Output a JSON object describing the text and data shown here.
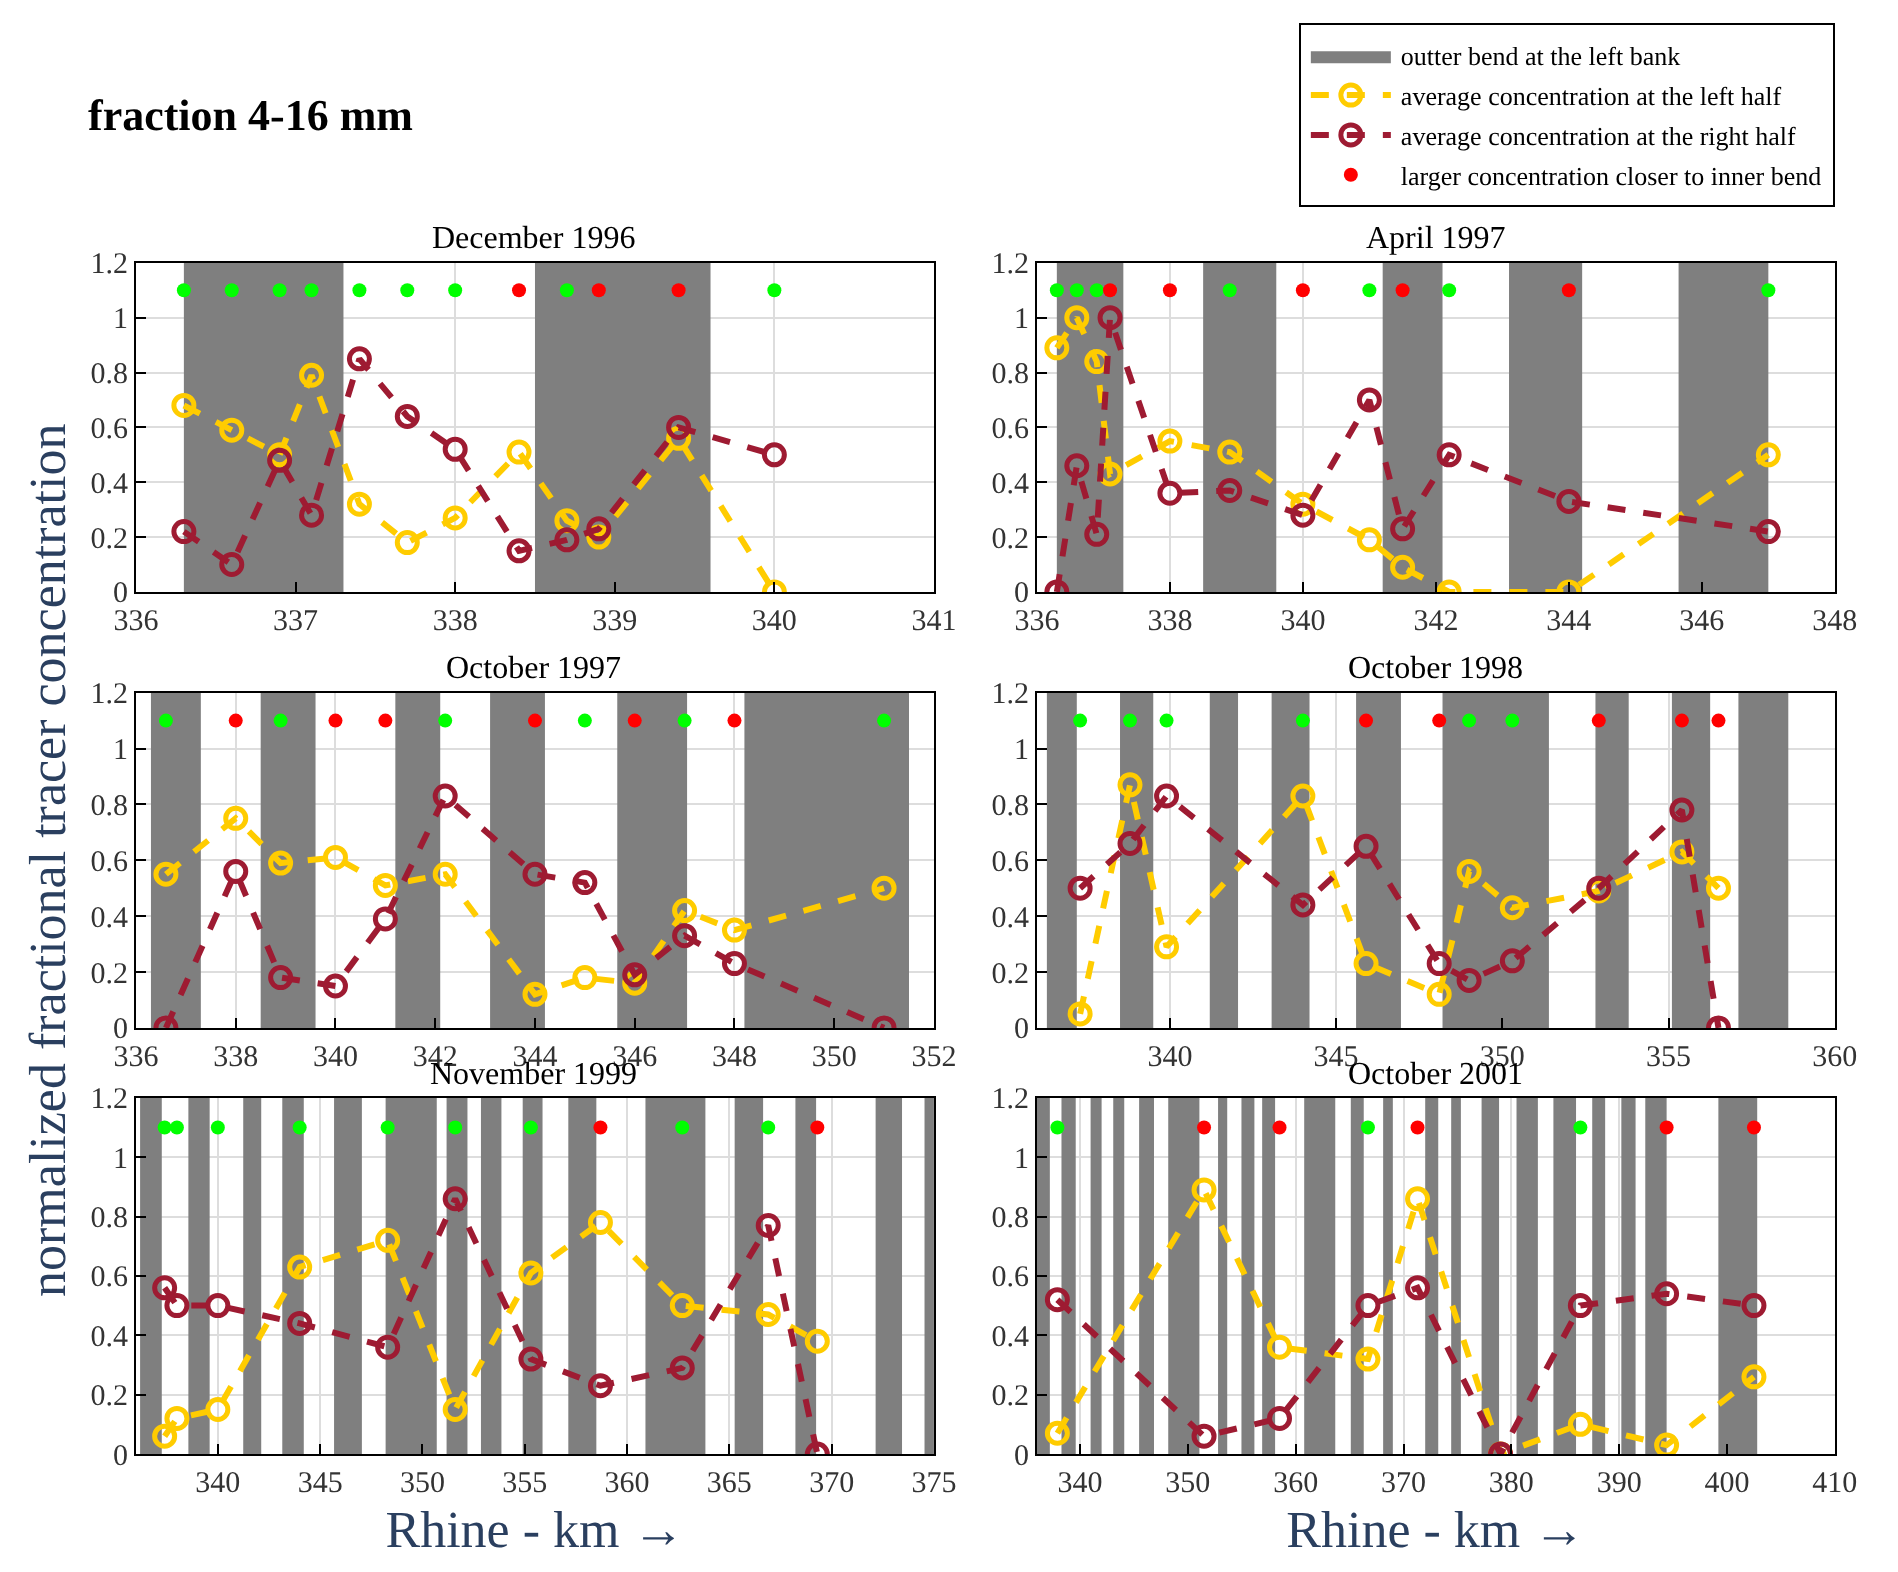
{
  "chart_data": [
    {
      "type": "line",
      "title": "December 1996",
      "annotations": [
        "fraction 4-16 mm"
      ],
      "legend": "top right",
      "grid": true,
      "xlim": [
        336,
        341
      ],
      "xticks": [
        336,
        337,
        338,
        339,
        340,
        341
      ],
      "ylim": [
        0,
        1.2
      ],
      "yticks": [
        0,
        0.2,
        0.4,
        0.6,
        0.8,
        1,
        1.2
      ],
      "bands": [
        {
          "axis": "x",
          "from": 336.3,
          "to": 337.3,
          "label": "outter bend at the left bank",
          "color": "#7f7f7f"
        },
        {
          "axis": "x",
          "from": 338.5,
          "to": 339.6,
          "color": "#7f7f7f"
        }
      ],
      "series": [
        {
          "name": "average concentration at the left half",
          "type": "line",
          "color": "#ffcc00",
          "marker": "circle",
          "line_style": "dashed",
          "x": [
            336.3,
            336.6,
            336.9,
            337.1,
            337.4,
            337.7,
            338.0,
            338.4,
            338.7,
            338.9,
            339.4,
            340.0
          ],
          "values": [
            0.68,
            0.59,
            0.5,
            0.79,
            0.32,
            0.18,
            0.27,
            0.51,
            0.26,
            0.2,
            0.56,
            0
          ]
        },
        {
          "name": "average concentration at the right half",
          "type": "line",
          "color": "#9e1b32",
          "marker": "circle",
          "line_style": "dashed",
          "x": [
            336.3,
            336.6,
            336.9,
            337.1,
            337.4,
            337.7,
            338.0,
            338.4,
            338.7,
            338.9,
            339.4,
            340.0
          ],
          "values": [
            0.22,
            0.1,
            0.48,
            0.28,
            0.85,
            0.64,
            0.52,
            0.15,
            0.19,
            0.23,
            0.6,
            0.5
          ]
        },
        {
          "type": "scatter",
          "color": "#00ff00",
          "marker": "circle",
          "x": [
            336.3,
            336.6,
            336.9,
            337.1,
            337.4,
            337.7,
            338.0,
            338.7,
            340.0
          ],
          "values": [
            1.1,
            1.1,
            1.1,
            1.1,
            1.1,
            1.1,
            1.1,
            1.1,
            1.1
          ]
        },
        {
          "name": "larger concentration closer to inner bend",
          "type": "scatter",
          "color": "#ff0000",
          "marker": "circle",
          "x": [
            338.4,
            338.9,
            339.4
          ],
          "values": [
            1.1,
            1.1,
            1.1
          ]
        }
      ]
    },
    {
      "type": "line",
      "title": "April 1997",
      "grid": true,
      "xlim": [
        336,
        348
      ],
      "xticks": [
        336,
        338,
        340,
        342,
        344,
        346,
        348
      ],
      "ylim": [
        0,
        1.2
      ],
      "yticks": [
        0,
        0.2,
        0.4,
        0.6,
        0.8,
        1,
        1.2
      ],
      "bands": [
        {
          "axis": "x",
          "from": 336.3,
          "to": 337.3,
          "color": "#7f7f7f"
        },
        {
          "axis": "x",
          "from": 338.5,
          "to": 339.6,
          "color": "#7f7f7f"
        },
        {
          "axis": "x",
          "from": 341.2,
          "to": 342.1,
          "color": "#7f7f7f"
        },
        {
          "axis": "x",
          "from": 343.1,
          "to": 344.2,
          "color": "#7f7f7f"
        },
        {
          "axis": "x",
          "from": 345.65,
          "to": 347.0,
          "color": "#7f7f7f"
        }
      ],
      "series": [
        {
          "type": "line",
          "color": "#ffcc00",
          "marker": "circle",
          "line_style": "dashed",
          "x": [
            336.3,
            336.6,
            336.9,
            337.1,
            338.0,
            338.9,
            340.0,
            341.0,
            341.5,
            342.2,
            344.0,
            347.0
          ],
          "values": [
            0.89,
            1.0,
            0.84,
            0.43,
            0.55,
            0.51,
            0.32,
            0.19,
            0.09,
            0,
            0,
            0.5
          ]
        },
        {
          "type": "line",
          "color": "#9e1b32",
          "marker": "circle",
          "line_style": "dashed",
          "x": [
            336.3,
            336.6,
            336.9,
            337.1,
            338.0,
            338.9,
            340.0,
            341.0,
            341.5,
            342.2,
            344.0,
            347.0
          ],
          "values": [
            0,
            0.46,
            0.21,
            1.0,
            0.36,
            0.37,
            0.28,
            0.7,
            0.23,
            0.5,
            0.33,
            0.22
          ]
        },
        {
          "type": "scatter",
          "color": "#00ff00",
          "marker": "circle",
          "x": [
            336.3,
            336.6,
            336.9,
            338.9,
            341.0,
            342.2,
            347.0
          ],
          "values": [
            1.1,
            1.1,
            1.1,
            1.1,
            1.1,
            1.1,
            1.1
          ]
        },
        {
          "type": "scatter",
          "color": "#ff0000",
          "marker": "circle",
          "x": [
            337.1,
            338.0,
            340.0,
            341.5,
            344.0
          ],
          "values": [
            1.1,
            1.1,
            1.1,
            1.1,
            1.1
          ]
        }
      ]
    },
    {
      "type": "line",
      "title": "October 1997",
      "ylabel": "normalized fractional tracer concentration",
      "grid": true,
      "xlim": [
        336,
        352
      ],
      "xticks": [
        336,
        338,
        340,
        342,
        344,
        346,
        348,
        350,
        352
      ],
      "ylim": [
        0,
        1.2
      ],
      "yticks": [
        0,
        0.2,
        0.4,
        0.6,
        0.8,
        1,
        1.2
      ],
      "bands": [
        {
          "axis": "x",
          "from": 336.3,
          "to": 337.3,
          "color": "#7f7f7f"
        },
        {
          "axis": "x",
          "from": 338.5,
          "to": 339.6,
          "color": "#7f7f7f"
        },
        {
          "axis": "x",
          "from": 341.2,
          "to": 342.1,
          "color": "#7f7f7f"
        },
        {
          "axis": "x",
          "from": 343.1,
          "to": 344.2,
          "color": "#7f7f7f"
        },
        {
          "axis": "x",
          "from": 345.65,
          "to": 347.05,
          "color": "#7f7f7f"
        },
        {
          "axis": "x",
          "from": 348.2,
          "to": 351.5,
          "color": "#7f7f7f"
        }
      ],
      "series": [
        {
          "type": "line",
          "color": "#ffcc00",
          "marker": "circle",
          "line_style": "dashed",
          "x": [
            336.6,
            338.0,
            338.9,
            340.0,
            341.0,
            342.2,
            344.0,
            345.0,
            346.0,
            347.0,
            348.0,
            351.0
          ],
          "values": [
            0.55,
            0.75,
            0.59,
            0.61,
            0.51,
            0.55,
            0.12,
            0.18,
            0.16,
            0.42,
            0.35,
            0.5
          ]
        },
        {
          "type": "line",
          "color": "#9e1b32",
          "marker": "circle",
          "line_style": "dashed",
          "x": [
            336.6,
            338.0,
            338.9,
            340.0,
            341.0,
            342.2,
            344.0,
            345.0,
            346.0,
            347.0,
            348.0,
            351.0
          ],
          "values": [
            0,
            0.56,
            0.18,
            0.15,
            0.39,
            0.83,
            0.55,
            0.52,
            0.19,
            0.33,
            0.23,
            0
          ]
        },
        {
          "type": "scatter",
          "color": "#00ff00",
          "marker": "circle",
          "x": [
            336.6,
            338.9,
            342.2,
            345.0,
            347.0,
            351.0
          ],
          "values": [
            1.1,
            1.1,
            1.1,
            1.1,
            1.1,
            1.1
          ]
        },
        {
          "type": "scatter",
          "color": "#ff0000",
          "marker": "circle",
          "x": [
            338.0,
            340.0,
            341.0,
            344.0,
            346.0,
            348.0
          ],
          "values": [
            1.1,
            1.1,
            1.1,
            1.1,
            1.1,
            1.1
          ]
        }
      ]
    },
    {
      "type": "line",
      "title": "October 1998",
      "grid": true,
      "xlim": [
        336,
        360
      ],
      "xticks": [
        340,
        345,
        350,
        355,
        360
      ],
      "ylim": [
        0,
        1.2
      ],
      "yticks": [
        0,
        0.2,
        0.4,
        0.6,
        0.8,
        1,
        1.2
      ],
      "bands": [
        {
          "axis": "x",
          "from": 336.3,
          "to": 337.2,
          "color": "#7f7f7f"
        },
        {
          "axis": "x",
          "from": 338.5,
          "to": 339.5,
          "color": "#7f7f7f"
        },
        {
          "axis": "x",
          "from": 341.2,
          "to": 342.05,
          "color": "#7f7f7f"
        },
        {
          "axis": "x",
          "from": 343.06,
          "to": 344.2,
          "color": "#7f7f7f"
        },
        {
          "axis": "x",
          "from": 345.6,
          "to": 346.95,
          "color": "#7f7f7f"
        },
        {
          "axis": "x",
          "from": 348.2,
          "to": 351.4,
          "color": "#7f7f7f"
        },
        {
          "axis": "x",
          "from": 352.8,
          "to": 353.8,
          "color": "#7f7f7f"
        },
        {
          "axis": "x",
          "from": 355.1,
          "to": 356.25,
          "color": "#7f7f7f"
        },
        {
          "axis": "x",
          "from": 357.1,
          "to": 358.6,
          "color": "#7f7f7f"
        }
      ],
      "series": [
        {
          "type": "line",
          "color": "#ffcc00",
          "marker": "circle",
          "line_style": "dashed",
          "x": [
            337.3,
            338.8,
            339.9,
            344.0,
            345.9,
            348.1,
            349.0,
            350.3,
            352.9,
            355.4,
            356.5
          ],
          "values": [
            0.05,
            0.87,
            0.29,
            0.83,
            0.23,
            0.12,
            0.56,
            0.43,
            0.49,
            0.63,
            0.5
          ]
        },
        {
          "type": "line",
          "color": "#9e1b32",
          "marker": "circle",
          "line_style": "dashed",
          "x": [
            337.3,
            338.8,
            339.9,
            344.0,
            345.9,
            348.1,
            349.0,
            350.3,
            352.9,
            355.4,
            356.5
          ],
          "values": [
            0.5,
            0.66,
            0.83,
            0.44,
            0.65,
            0.23,
            0.17,
            0.24,
            0.5,
            0.78,
            0
          ]
        },
        {
          "type": "scatter",
          "color": "#00ff00",
          "marker": "circle",
          "x": [
            337.3,
            338.8,
            339.9,
            344.0,
            349.0,
            350.3
          ],
          "values": [
            1.1,
            1.1,
            1.1,
            1.1,
            1.1,
            1.1
          ]
        },
        {
          "type": "scatter",
          "color": "#ff0000",
          "marker": "circle",
          "x": [
            345.9,
            348.1,
            352.9,
            355.4,
            356.5
          ],
          "values": [
            1.1,
            1.1,
            1.1,
            1.1,
            1.1
          ]
        }
      ]
    },
    {
      "type": "line",
      "title": "November 1999",
      "xlabel": "Rhine - km →",
      "grid": true,
      "xlim": [
        336,
        375
      ],
      "xticks": [
        340,
        345,
        350,
        355,
        360,
        365,
        370,
        375
      ],
      "ylim": [
        0,
        1.2
      ],
      "yticks": [
        0,
        0.2,
        0.4,
        0.6,
        0.8,
        1,
        1.2
      ],
      "bands": [
        {
          "axis": "x",
          "from": 336.2,
          "to": 337.26,
          "color": "#7f7f7f"
        },
        {
          "axis": "x",
          "from": 338.56,
          "to": 339.6,
          "color": "#7f7f7f"
        },
        {
          "axis": "x",
          "from": 341.24,
          "to": 342.12,
          "color": "#7f7f7f"
        },
        {
          "axis": "x",
          "from": 343.15,
          "to": 344.2,
          "color": "#7f7f7f"
        },
        {
          "axis": "x",
          "from": 345.68,
          "to": 347.04,
          "color": "#7f7f7f"
        },
        {
          "axis": "x",
          "from": 348.2,
          "to": 350.7,
          "color": "#7f7f7f"
        },
        {
          "axis": "x",
          "from": 351.18,
          "to": 352.2,
          "color": "#7f7f7f"
        },
        {
          "axis": "x",
          "from": 352.86,
          "to": 353.86,
          "color": "#7f7f7f"
        },
        {
          "axis": "x",
          "from": 354.9,
          "to": 355.87,
          "color": "#7f7f7f"
        },
        {
          "axis": "x",
          "from": 357.13,
          "to": 358.5,
          "color": "#7f7f7f"
        },
        {
          "axis": "x",
          "from": 360.9,
          "to": 363.83,
          "color": "#7f7f7f"
        },
        {
          "axis": "x",
          "from": 365.26,
          "to": 366.65,
          "color": "#7f7f7f"
        },
        {
          "axis": "x",
          "from": 368.23,
          "to": 369.24,
          "color": "#7f7f7f"
        },
        {
          "axis": "x",
          "from": 372.15,
          "to": 373.44,
          "color": "#7f7f7f"
        },
        {
          "axis": "x",
          "from": 374.54,
          "to": 375,
          "color": "#7f7f7f"
        }
      ],
      "series": [
        {
          "type": "line",
          "color": "#ffcc00",
          "marker": "circle",
          "line_style": "dashed",
          "x": [
            337.4,
            338.0,
            340.0,
            344.0,
            348.3,
            351.6,
            355.3,
            358.7,
            362.7,
            366.9,
            369.3
          ],
          "values": [
            0.06,
            0.12,
            0.15,
            0.63,
            0.72,
            0.15,
            0.61,
            0.78,
            0.5,
            0.47,
            0.38
          ]
        },
        {
          "type": "line",
          "color": "#9e1b32",
          "marker": "circle",
          "line_style": "dashed",
          "x": [
            337.4,
            338.0,
            340.0,
            344.0,
            348.3,
            351.6,
            355.3,
            358.7,
            362.7,
            366.9,
            369.3
          ],
          "values": [
            0.56,
            0.5,
            0.5,
            0.44,
            0.36,
            0.86,
            0.32,
            0.23,
            0.29,
            0.77,
            0
          ]
        },
        {
          "type": "scatter",
          "color": "#00ff00",
          "marker": "circle",
          "x": [
            337.4,
            338.0,
            340.0,
            344.0,
            348.3,
            351.6,
            355.3,
            362.7,
            366.9
          ],
          "values": [
            1.1,
            1.1,
            1.1,
            1.1,
            1.1,
            1.1,
            1.1,
            1.1,
            1.1
          ]
        },
        {
          "type": "scatter",
          "color": "#ff0000",
          "marker": "circle",
          "x": [
            358.7,
            369.3
          ],
          "values": [
            1.1,
            1.1
          ]
        }
      ]
    },
    {
      "type": "line",
      "title": "October 2001",
      "xlabel": "Rhine - km →",
      "grid": true,
      "xlim": [
        336,
        410
      ],
      "xticks": [
        340,
        350,
        360,
        370,
        380,
        390,
        400,
        410
      ],
      "ylim": [
        0,
        1.2
      ],
      "yticks": [
        0,
        0.2,
        0.4,
        0.6,
        0.8,
        1,
        1.2
      ],
      "bands": [
        {
          "axis": "x",
          "from": 336.0,
          "to": 337.2,
          "color": "#7f7f7f"
        },
        {
          "axis": "x",
          "from": 338.28,
          "to": 339.6,
          "color": "#7f7f7f"
        },
        {
          "axis": "x",
          "from": 340.98,
          "to": 342.0,
          "color": "#7f7f7f"
        },
        {
          "axis": "x",
          "from": 343.08,
          "to": 344.1,
          "color": "#7f7f7f"
        },
        {
          "axis": "x",
          "from": 345.48,
          "to": 346.86,
          "color": "#7f7f7f"
        },
        {
          "axis": "x",
          "from": 348.18,
          "to": 351.07,
          "color": "#7f7f7f"
        },
        {
          "axis": "x",
          "from": 352.8,
          "to": 353.65,
          "color": "#7f7f7f"
        },
        {
          "axis": "x",
          "from": 354.97,
          "to": 356.17,
          "color": "#7f7f7f"
        },
        {
          "axis": "x",
          "from": 356.89,
          "to": 358.09,
          "color": "#7f7f7f"
        },
        {
          "axis": "x",
          "from": 360.79,
          "to": 363.67,
          "color": "#7f7f7f"
        },
        {
          "axis": "x",
          "from": 365.11,
          "to": 366.31,
          "color": "#7f7f7f"
        },
        {
          "axis": "x",
          "from": 368.11,
          "to": 369.01,
          "color": "#7f7f7f"
        },
        {
          "axis": "x",
          "from": 372.01,
          "to": 373.22,
          "color": "#7f7f7f"
        },
        {
          "axis": "x",
          "from": 374.42,
          "to": 375.32,
          "color": "#7f7f7f"
        },
        {
          "axis": "x",
          "from": 377.24,
          "to": 378.86,
          "color": "#7f7f7f"
        },
        {
          "axis": "x",
          "from": 380.48,
          "to": 382.46,
          "color": "#7f7f7f"
        },
        {
          "axis": "x",
          "from": 383.9,
          "to": 386.0,
          "color": "#7f7f7f"
        },
        {
          "axis": "x",
          "from": 387.5,
          "to": 388.7,
          "color": "#7f7f7f"
        },
        {
          "axis": "x",
          "from": 390.2,
          "to": 391.52,
          "color": "#7f7f7f"
        },
        {
          "axis": "x",
          "from": 392.42,
          "to": 394.4,
          "color": "#7f7f7f"
        },
        {
          "axis": "x",
          "from": 399.2,
          "to": 402.8,
          "color": "#7f7f7f"
        }
      ],
      "series": [
        {
          "type": "line",
          "color": "#ffcc00",
          "marker": "circle",
          "line_style": "dashed",
          "x": [
            337.9,
            351.5,
            358.5,
            366.7,
            371.3,
            379.0,
            386.4,
            394.4,
            402.5
          ],
          "values": [
            0.07,
            0.89,
            0.36,
            0.32,
            0.86,
            0,
            0.1,
            0.03,
            0.26
          ]
        },
        {
          "type": "line",
          "color": "#9e1b32",
          "marker": "circle",
          "line_style": "dashed",
          "x": [
            337.9,
            351.5,
            358.5,
            366.7,
            371.3,
            379.0,
            386.4,
            394.4,
            402.5
          ],
          "values": [
            0.52,
            0.06,
            0.12,
            0.5,
            0.56,
            0,
            0.5,
            0.54,
            0.5
          ]
        },
        {
          "type": "scatter",
          "color": "#00ff00",
          "marker": "circle",
          "x": [
            337.9,
            366.7,
            386.4
          ],
          "values": [
            1.1,
            1.1,
            1.1
          ]
        },
        {
          "type": "scatter",
          "color": "#ff0000",
          "marker": "circle",
          "x": [
            351.5,
            358.5,
            371.3,
            394.4,
            402.5
          ],
          "values": [
            1.1,
            1.1,
            1.1,
            1.1,
            1.1
          ]
        }
      ]
    }
  ]
}
